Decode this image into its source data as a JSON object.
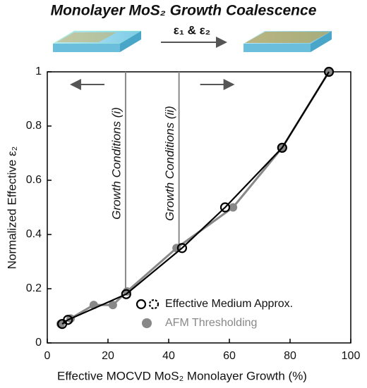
{
  "chart_data": {
    "type": "line",
    "title": "Monolayer MoS₂ Growth Coalescence",
    "subtitle": "ε₁ & ε₂",
    "x_label": "Effective MOCVD MoS₂ Monolayer Growth (%)",
    "y_label": "Normalized Effective ε₂",
    "xlim": [
      0,
      100
    ],
    "xticks": [
      0,
      20,
      40,
      60,
      80,
      100
    ],
    "ylim": [
      0,
      1
    ],
    "yticks": [
      0,
      0.2,
      0.4,
      0.6,
      0.8,
      1
    ],
    "legend": "lower right",
    "series": [
      {
        "name": "AFM Thresholding",
        "color": "#888888",
        "x": [
          4.4,
          7.7,
          15.3,
          21.6,
          26.3,
          42.6,
          61.2,
          77.4,
          92.8
        ],
        "values": [
          0.07,
          0.09,
          0.14,
          0.14,
          0.19,
          0.35,
          0.5,
          0.72,
          1.0
        ]
      },
      {
        "name": "Effective Medium Approx.",
        "color": "#000000",
        "x": [
          4.9,
          6.8,
          26.0,
          44.4,
          58.6,
          77.4,
          92.8
        ],
        "values": [
          0.07,
          0.085,
          0.18,
          0.35,
          0.5,
          0.72,
          1.0
        ]
      }
    ],
    "annotations": [
      {
        "text": "Growth Conditions (i)",
        "x": 25.8
      },
      {
        "text": "Growth Conditions (ii)",
        "x": 43.4
      }
    ]
  }
}
